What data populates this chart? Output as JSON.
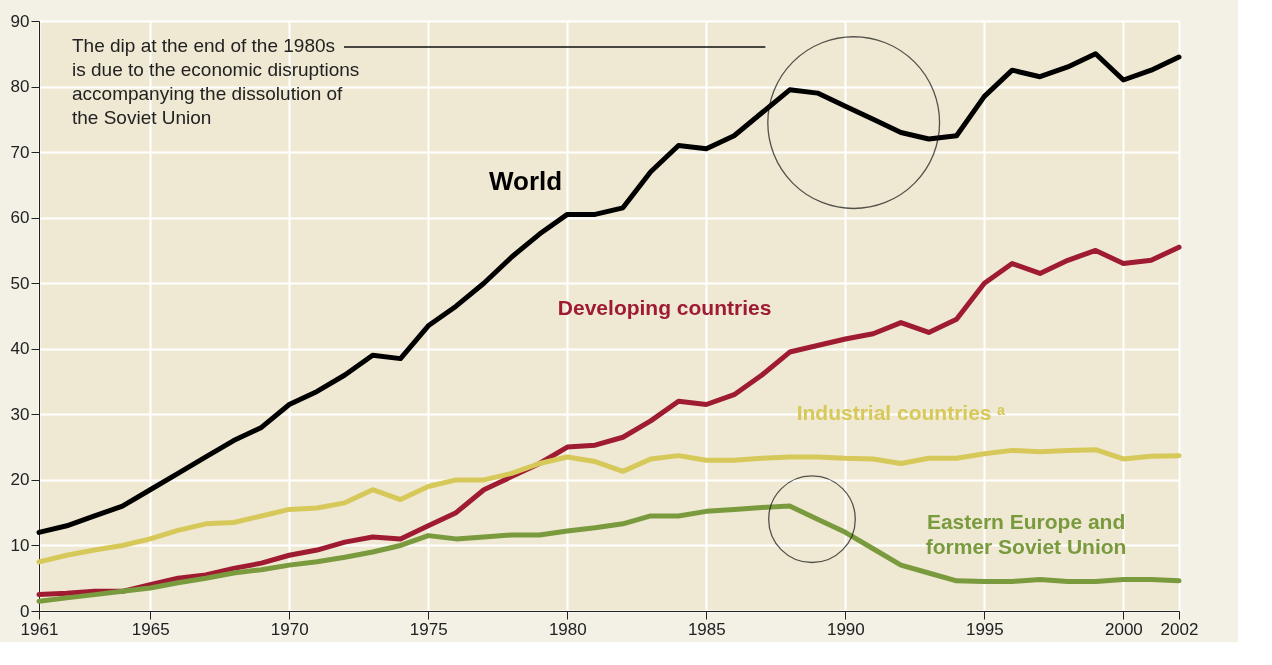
{
  "chart_data": {
    "type": "line",
    "x": [
      1961,
      1962,
      1963,
      1964,
      1965,
      1966,
      1967,
      1968,
      1969,
      1970,
      1971,
      1972,
      1973,
      1974,
      1975,
      1976,
      1977,
      1978,
      1979,
      1980,
      1981,
      1982,
      1983,
      1984,
      1985,
      1986,
      1987,
      1988,
      1989,
      1990,
      1991,
      1992,
      1993,
      1994,
      1995,
      1996,
      1997,
      1998,
      1999,
      2000,
      2001,
      2002
    ],
    "series": [
      {
        "name": "World",
        "color": "#000000",
        "values": [
          12,
          13,
          14.5,
          16,
          18.5,
          21,
          23.5,
          26,
          28,
          31.5,
          33.5,
          36,
          39,
          38.5,
          43.5,
          46.5,
          50,
          54,
          57.5,
          60.5,
          60.5,
          61.5,
          67,
          71,
          70.5,
          72.5,
          76,
          79.5,
          79,
          77,
          75,
          73,
          72,
          72.5,
          78.5,
          82.5,
          81.5,
          83,
          85,
          81,
          82.5,
          84.5
        ]
      },
      {
        "name": "Developing countries",
        "color": "#9e1b32",
        "values": [
          2.5,
          2.7,
          3,
          3,
          4,
          5,
          5.5,
          6.5,
          7.3,
          8.5,
          9.3,
          10.5,
          11.3,
          11,
          13,
          15,
          18.5,
          20.5,
          22.5,
          25,
          25.3,
          26.5,
          29,
          32,
          31.5,
          33,
          36,
          39.5,
          40.5,
          41.5,
          42.3,
          44,
          42.5,
          44.5,
          50,
          53,
          51.5,
          53.5,
          55,
          53,
          53.5,
          55.5
        ]
      },
      {
        "name": "Industrial countries ᵃ",
        "color": "#d6c95a",
        "values": [
          7.5,
          8.5,
          9.3,
          10,
          11,
          12.3,
          13.3,
          13.5,
          14.5,
          15.5,
          15.7,
          16.5,
          18.5,
          17,
          19,
          20,
          20,
          21,
          22.5,
          23.5,
          22.8,
          21.3,
          23.2,
          23.7,
          23,
          23,
          23.3,
          23.5,
          23.5,
          23.3,
          23.2,
          22.5,
          23.3,
          23.3,
          24,
          24.5,
          24.3,
          24.5,
          24.6,
          23.2,
          23.6,
          23.7
        ]
      },
      {
        "name": "Eastern Europe and former Soviet Union",
        "color": "#7a9a3e",
        "values": [
          1.5,
          2,
          2.5,
          3,
          3.5,
          4.3,
          5,
          5.8,
          6.3,
          7,
          7.5,
          8.2,
          9,
          10,
          11.5,
          11,
          11.3,
          11.6,
          11.6,
          12.2,
          12.7,
          13.3,
          14.5,
          14.5,
          15.2,
          15.5,
          15.8,
          16,
          14,
          12,
          9.5,
          7,
          5.8,
          4.6,
          4.5,
          4.5,
          4.8,
          4.5,
          4.5,
          4.8,
          4.8,
          4.6
        ]
      }
    ],
    "xlim": [
      1961,
      2002
    ],
    "xticks": [
      1961,
      1965,
      1970,
      1975,
      1980,
      1985,
      1990,
      1995,
      2000,
      2002
    ],
    "ylim": [
      0,
      90
    ],
    "yticks": [
      0,
      10,
      20,
      30,
      40,
      50,
      60,
      70,
      80,
      90
    ],
    "grid": true,
    "legend": false,
    "marker": "none",
    "line_style": "solid",
    "annotations": [
      "The dip at the end of the 1980s\nis due to the economic disruptions\naccompanying the dissolution of\nthe Soviet Union"
    ]
  }
}
